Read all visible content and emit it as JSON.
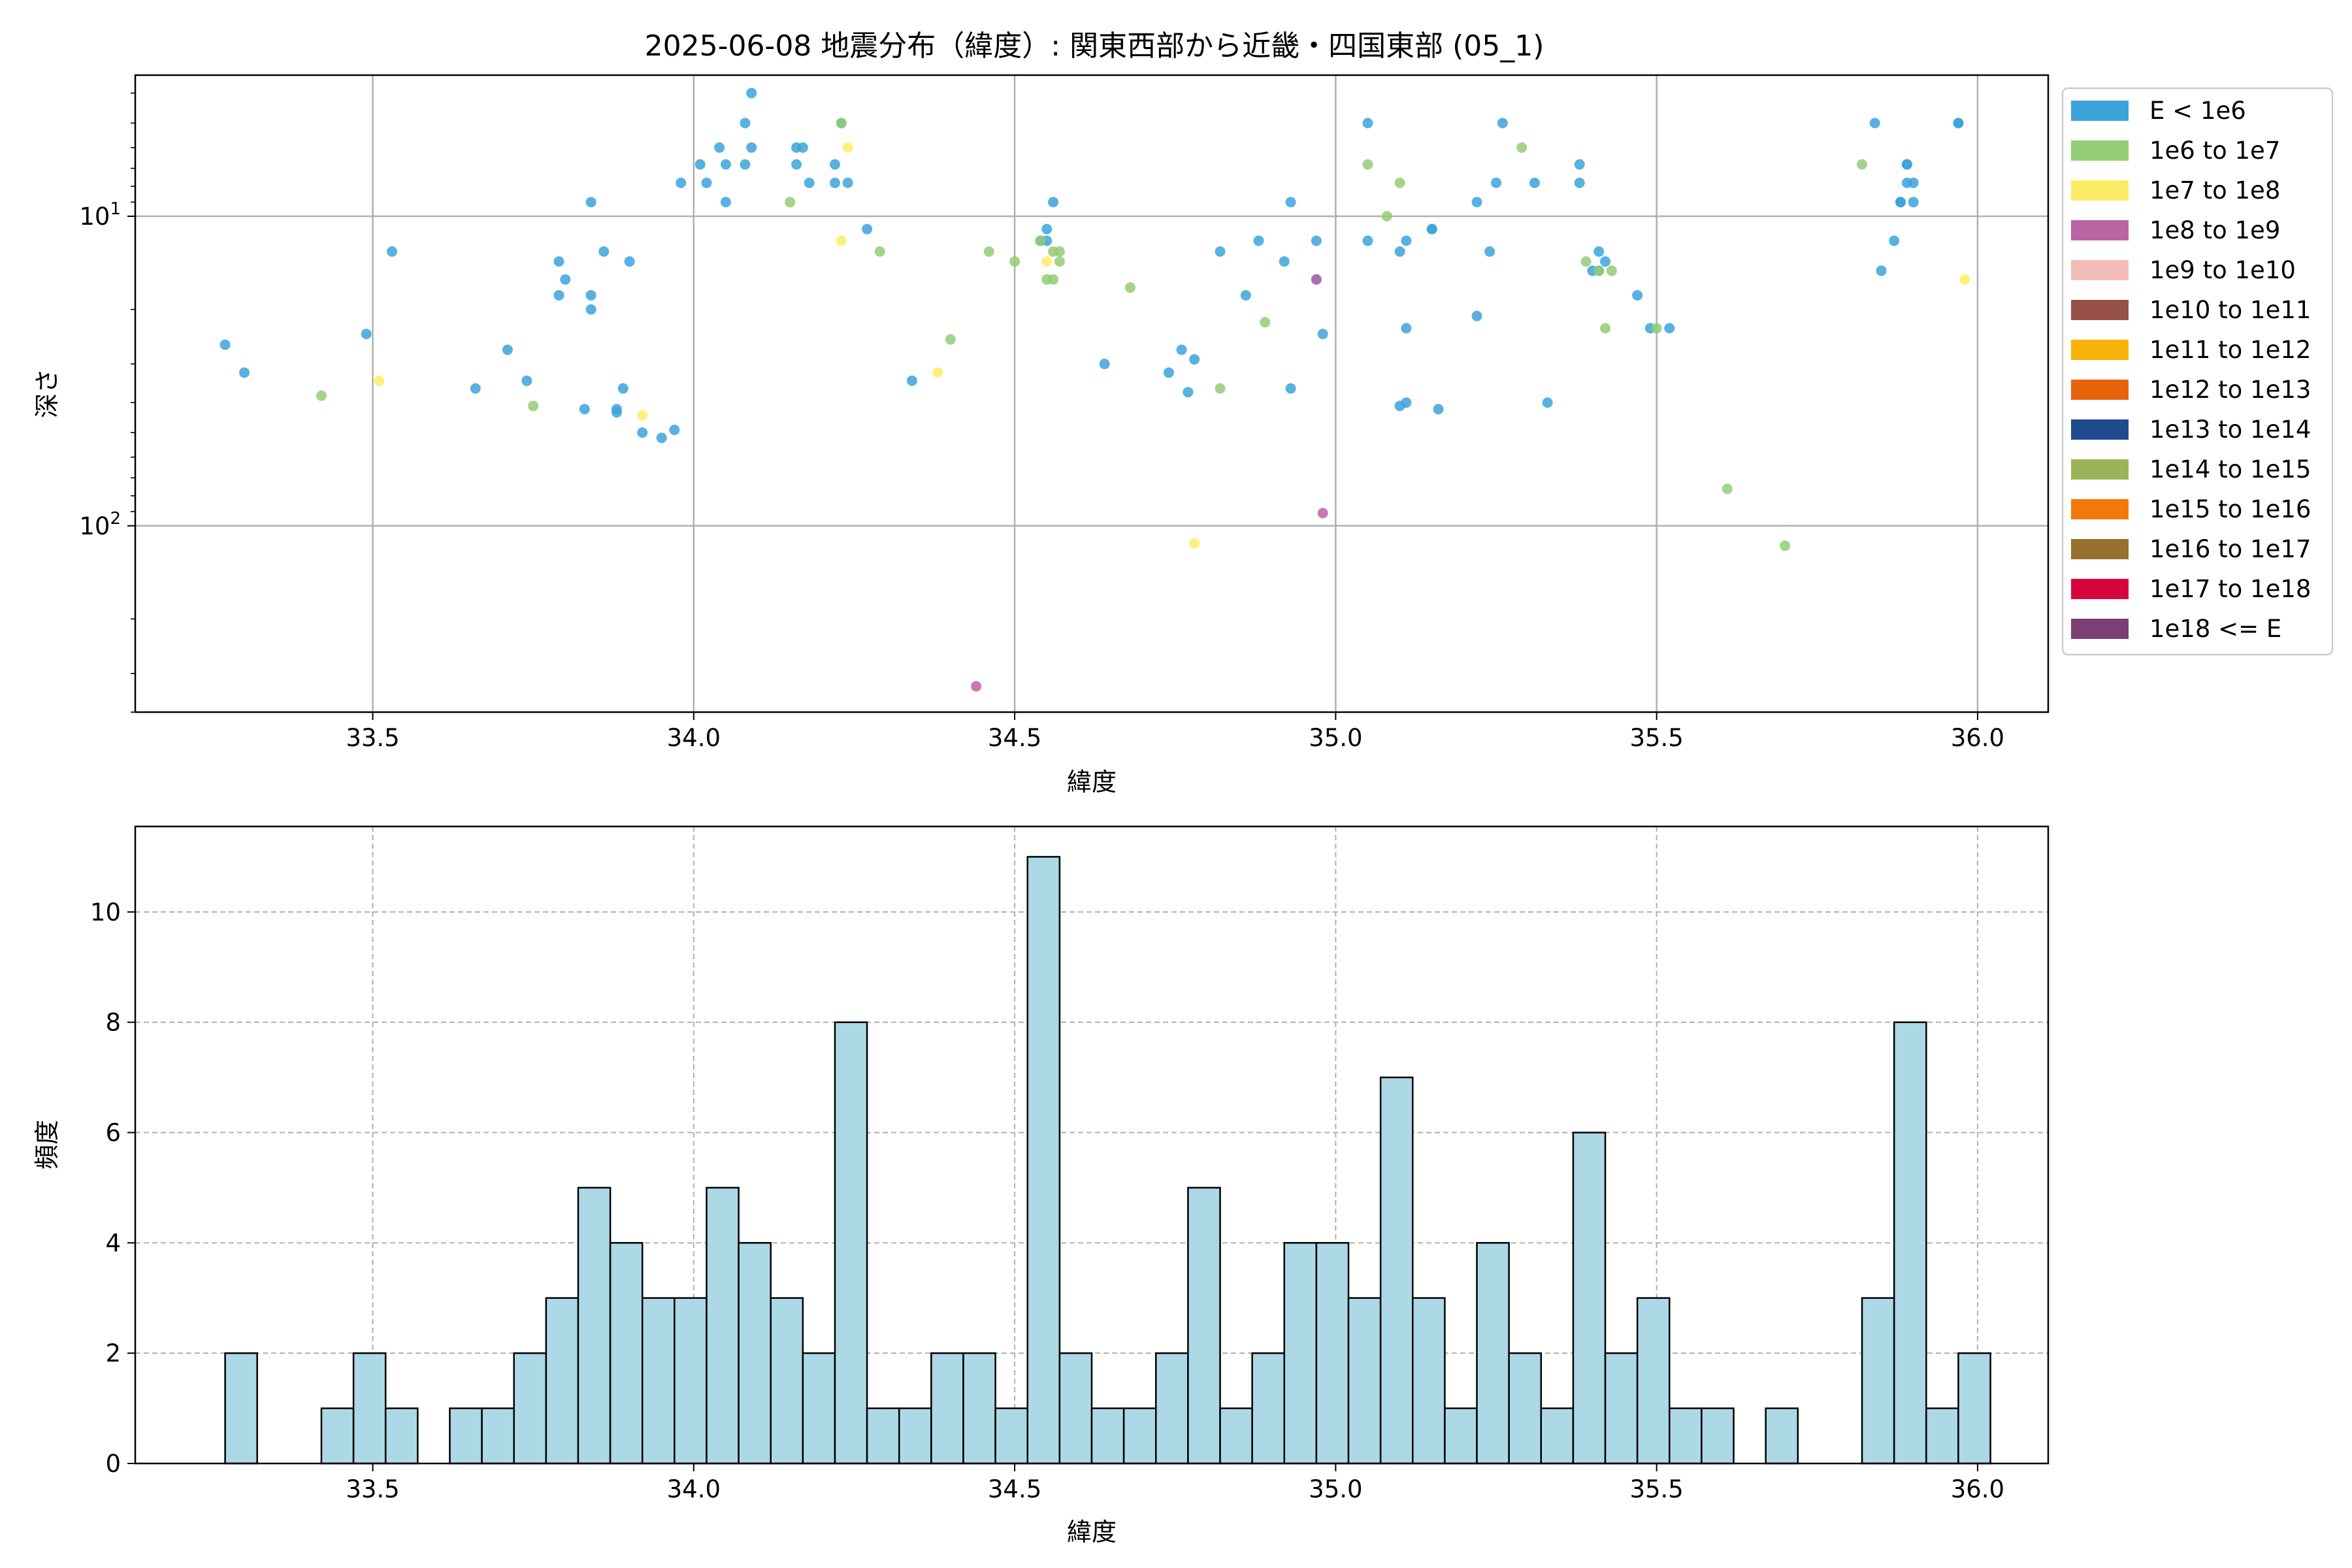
{
  "figure": {
    "title": "2025-06-08 地震分布（緯度）: 関東西部から近畿・四国東部 (05_1)"
  },
  "chart_data": [
    {
      "type": "scatter",
      "title": "2025-06-08 地震分布（緯度）: 関東西部から近畿・四国東部 (05_1)",
      "xlabel": "緯度",
      "ylabel": "深さ",
      "xlim": [
        33.13,
        36.11
      ],
      "ylim": [
        400,
        3.5
      ],
      "y_scale": "log",
      "y_inverted": true,
      "x_ticks": [
        33.5,
        34.0,
        34.5,
        35.0,
        35.5,
        36.0
      ],
      "x_tick_labels": [
        "33.5",
        "34.0",
        "34.5",
        "35.0",
        "35.5",
        "36.0"
      ],
      "y_major_ticks": [
        10,
        100
      ],
      "grid": true,
      "legend_position": "outside-right",
      "legend": [
        {
          "label": "E < 1e6",
          "color": "#3ba3dc"
        },
        {
          "label": "1e6 to 1e7",
          "color": "#93cd74"
        },
        {
          "label": "1e7 to 1e8",
          "color": "#fbee66"
        },
        {
          "label": "1e8 to 1e9",
          "color": "#bb64a3"
        },
        {
          "label": "1e9 to 1e10",
          "color": "#f5bdb8"
        },
        {
          "label": "1e10 to 1e11",
          "color": "#965048"
        },
        {
          "label": "1e11 to 1e12",
          "color": "#f8b30b"
        },
        {
          "label": "1e12 to 1e13",
          "color": "#e8640c"
        },
        {
          "label": "1e13 to 1e14",
          "color": "#1e4a8e"
        },
        {
          "label": "1e14 to 1e15",
          "color": "#9bb458"
        },
        {
          "label": "1e15 to 1e16",
          "color": "#f2780c"
        },
        {
          "label": "1e16 to 1e17",
          "color": "#987030"
        },
        {
          "label": "1e17 to 1e18",
          "color": "#d6063c"
        },
        {
          "label": "1e18 <= E",
          "color": "#7a3f73"
        }
      ],
      "series": [
        {
          "name": "E < 1e6",
          "points": [
            [
              33.27,
              26
            ],
            [
              33.3,
              32
            ],
            [
              33.49,
              24
            ],
            [
              33.53,
              13
            ],
            [
              33.66,
              36
            ],
            [
              33.71,
              27
            ],
            [
              33.74,
              34
            ],
            [
              33.79,
              14
            ],
            [
              33.79,
              18
            ],
            [
              33.8,
              16
            ],
            [
              33.83,
              42
            ],
            [
              33.84,
              9
            ],
            [
              33.84,
              18
            ],
            [
              33.84,
              20
            ],
            [
              33.86,
              13
            ],
            [
              33.88,
              43
            ],
            [
              33.88,
              42
            ],
            [
              33.89,
              36
            ],
            [
              33.9,
              14
            ],
            [
              33.92,
              50
            ],
            [
              33.95,
              52
            ],
            [
              33.97,
              49
            ],
            [
              33.98,
              7.8
            ],
            [
              34.01,
              6.8
            ],
            [
              34.02,
              7.8
            ],
            [
              34.04,
              6
            ],
            [
              34.05,
              6.8
            ],
            [
              34.05,
              9
            ],
            [
              34.08,
              5
            ],
            [
              34.08,
              6.8
            ],
            [
              34.09,
              4
            ],
            [
              34.09,
              6
            ],
            [
              34.16,
              6
            ],
            [
              34.16,
              6.8
            ],
            [
              34.17,
              6
            ],
            [
              34.18,
              7.8
            ],
            [
              34.22,
              6.8
            ],
            [
              34.22,
              7.8
            ],
            [
              34.23,
              5
            ],
            [
              34.24,
              7.8
            ],
            [
              34.27,
              11
            ],
            [
              34.34,
              34
            ],
            [
              34.54,
              12
            ],
            [
              34.55,
              12
            ],
            [
              34.55,
              11
            ],
            [
              34.56,
              9
            ],
            [
              34.64,
              30
            ],
            [
              34.74,
              32
            ],
            [
              34.76,
              27
            ],
            [
              34.77,
              37
            ],
            [
              34.78,
              29
            ],
            [
              34.82,
              13
            ],
            [
              34.86,
              18
            ],
            [
              34.88,
              12
            ],
            [
              34.92,
              14
            ],
            [
              34.93,
              36
            ],
            [
              34.93,
              9
            ],
            [
              34.97,
              16
            ],
            [
              34.97,
              12
            ],
            [
              34.98,
              24
            ],
            [
              35.05,
              5
            ],
            [
              35.05,
              12
            ],
            [
              35.1,
              41
            ],
            [
              35.1,
              13
            ],
            [
              35.11,
              23
            ],
            [
              35.11,
              12
            ],
            [
              35.11,
              40
            ],
            [
              35.15,
              11
            ],
            [
              35.15,
              11
            ],
            [
              35.16,
              42
            ],
            [
              35.22,
              21
            ],
            [
              35.22,
              9
            ],
            [
              35.24,
              13
            ],
            [
              35.25,
              7.8
            ],
            [
              35.26,
              5
            ],
            [
              35.31,
              7.8
            ],
            [
              35.33,
              40
            ],
            [
              35.38,
              7.8
            ],
            [
              35.38,
              6.8
            ],
            [
              35.4,
              15
            ],
            [
              35.41,
              15
            ],
            [
              35.41,
              13
            ],
            [
              35.42,
              14
            ],
            [
              35.47,
              18
            ],
            [
              35.49,
              23
            ],
            [
              35.52,
              23
            ],
            [
              35.84,
              5
            ],
            [
              35.85,
              15
            ],
            [
              35.87,
              12
            ],
            [
              35.88,
              9
            ],
            [
              35.88,
              9
            ],
            [
              35.89,
              6.8
            ],
            [
              35.89,
              6.8
            ],
            [
              35.89,
              7.8
            ],
            [
              35.9,
              9
            ],
            [
              35.9,
              7.8
            ],
            [
              35.97,
              5
            ],
            [
              35.97,
              5
            ]
          ]
        },
        {
          "name": "1e6 to 1e7",
          "points": [
            [
              33.42,
              38
            ],
            [
              33.75,
              41
            ],
            [
              34.15,
              9
            ],
            [
              34.23,
              5
            ],
            [
              34.29,
              13
            ],
            [
              34.4,
              25
            ],
            [
              34.46,
              13
            ],
            [
              34.5,
              14
            ],
            [
              34.54,
              12
            ],
            [
              34.55,
              16
            ],
            [
              34.56,
              16
            ],
            [
              34.56,
              13
            ],
            [
              34.57,
              13
            ],
            [
              34.57,
              14
            ],
            [
              34.68,
              17
            ],
            [
              34.82,
              36
            ],
            [
              34.89,
              22
            ],
            [
              35.05,
              6.8
            ],
            [
              35.08,
              10
            ],
            [
              35.1,
              7.8
            ],
            [
              35.29,
              6
            ],
            [
              35.39,
              14
            ],
            [
              35.41,
              15
            ],
            [
              35.42,
              23
            ],
            [
              35.43,
              15
            ],
            [
              35.5,
              23
            ],
            [
              35.61,
              76
            ],
            [
              35.7,
              116
            ],
            [
              35.82,
              6.8
            ]
          ]
        },
        {
          "name": "1e7 to 1e8",
          "points": [
            [
              33.51,
              34
            ],
            [
              33.92,
              44
            ],
            [
              34.23,
              12
            ],
            [
              34.24,
              6
            ],
            [
              34.38,
              32
            ],
            [
              34.55,
              14
            ],
            [
              34.78,
              114
            ],
            [
              35.98,
              16
            ]
          ]
        },
        {
          "name": "1e8 to 1e9",
          "points": [
            [
              34.44,
              330
            ],
            [
              34.97,
              16
            ],
            [
              34.98,
              91
            ]
          ]
        }
      ]
    },
    {
      "type": "bar",
      "subtype": "histogram",
      "xlabel": "緯度",
      "ylabel": "頻度",
      "xlim": [
        33.13,
        36.11
      ],
      "ylim": [
        0,
        11.55
      ],
      "x_ticks": [
        33.5,
        34.0,
        34.5,
        35.0,
        35.5,
        36.0
      ],
      "x_tick_labels": [
        "33.5",
        "34.0",
        "34.5",
        "35.0",
        "35.5",
        "36.0"
      ],
      "y_ticks": [
        0,
        2,
        4,
        6,
        8,
        10
      ],
      "grid": true,
      "bar_color": "#add8e6",
      "edge_color": "#000000",
      "bin_start": 33.27,
      "bin_width": 0.05,
      "counts": [
        2,
        0,
        0,
        1,
        2,
        1,
        0,
        1,
        1,
        2,
        3,
        5,
        4,
        3,
        3,
        5,
        4,
        3,
        2,
        8,
        1,
        1,
        2,
        2,
        1,
        11,
        2,
        1,
        1,
        2,
        5,
        1,
        2,
        4,
        4,
        3,
        7,
        3,
        1,
        4,
        2,
        1,
        6,
        2,
        3,
        1,
        1,
        0,
        1,
        0,
        0,
        3,
        8,
        1,
        2
      ]
    }
  ]
}
